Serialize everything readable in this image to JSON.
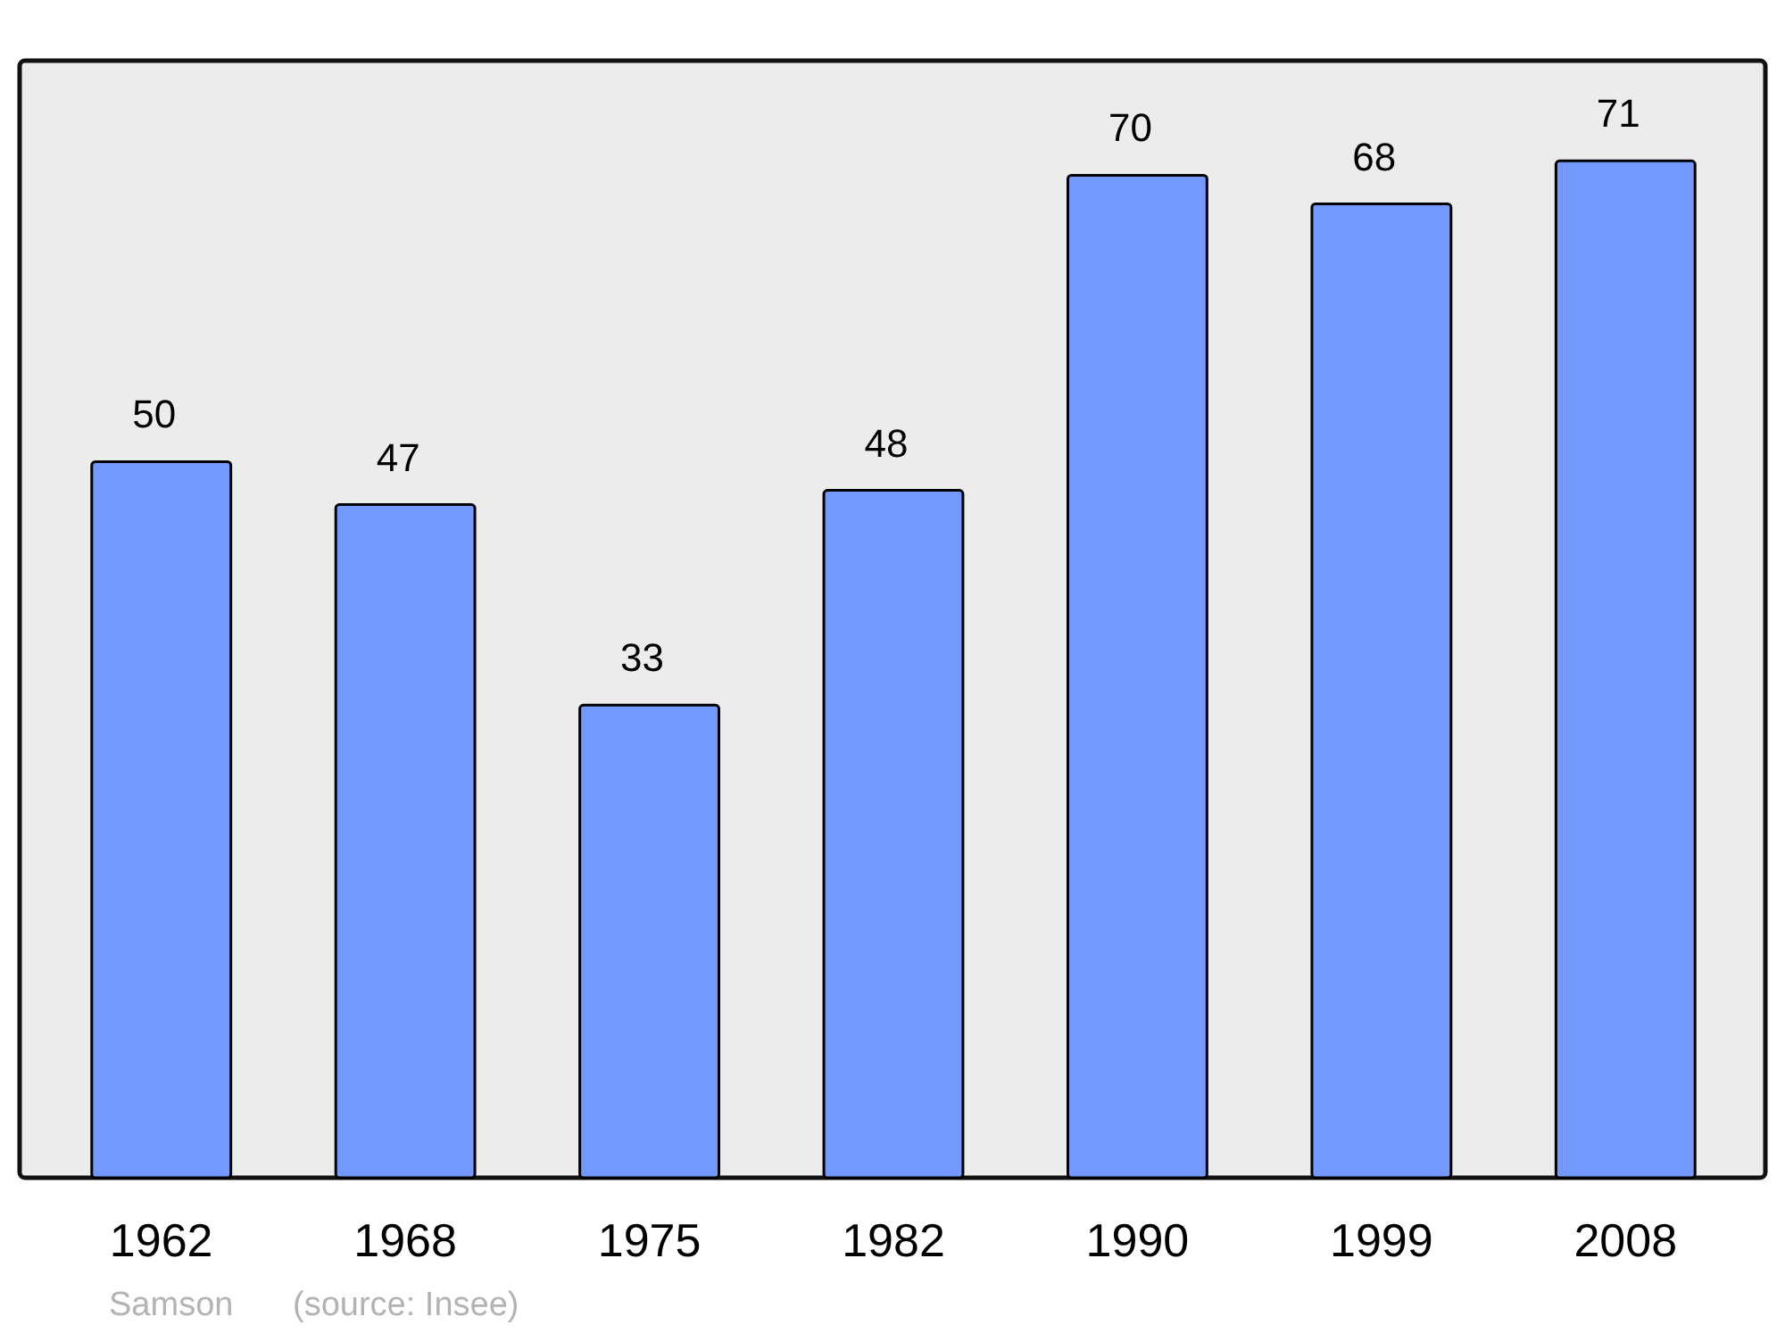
{
  "chart_data": {
    "type": "bar",
    "categories": [
      "1962",
      "1968",
      "1975",
      "1982",
      "1990",
      "1999",
      "2008"
    ],
    "values": [
      50,
      47,
      33,
      48,
      70,
      68,
      71
    ],
    "color": "#7399ff",
    "ylim": [
      0,
      78
    ],
    "data_labels": true,
    "annotations": [
      "Samson",
      "(source: Insee)"
    ]
  }
}
